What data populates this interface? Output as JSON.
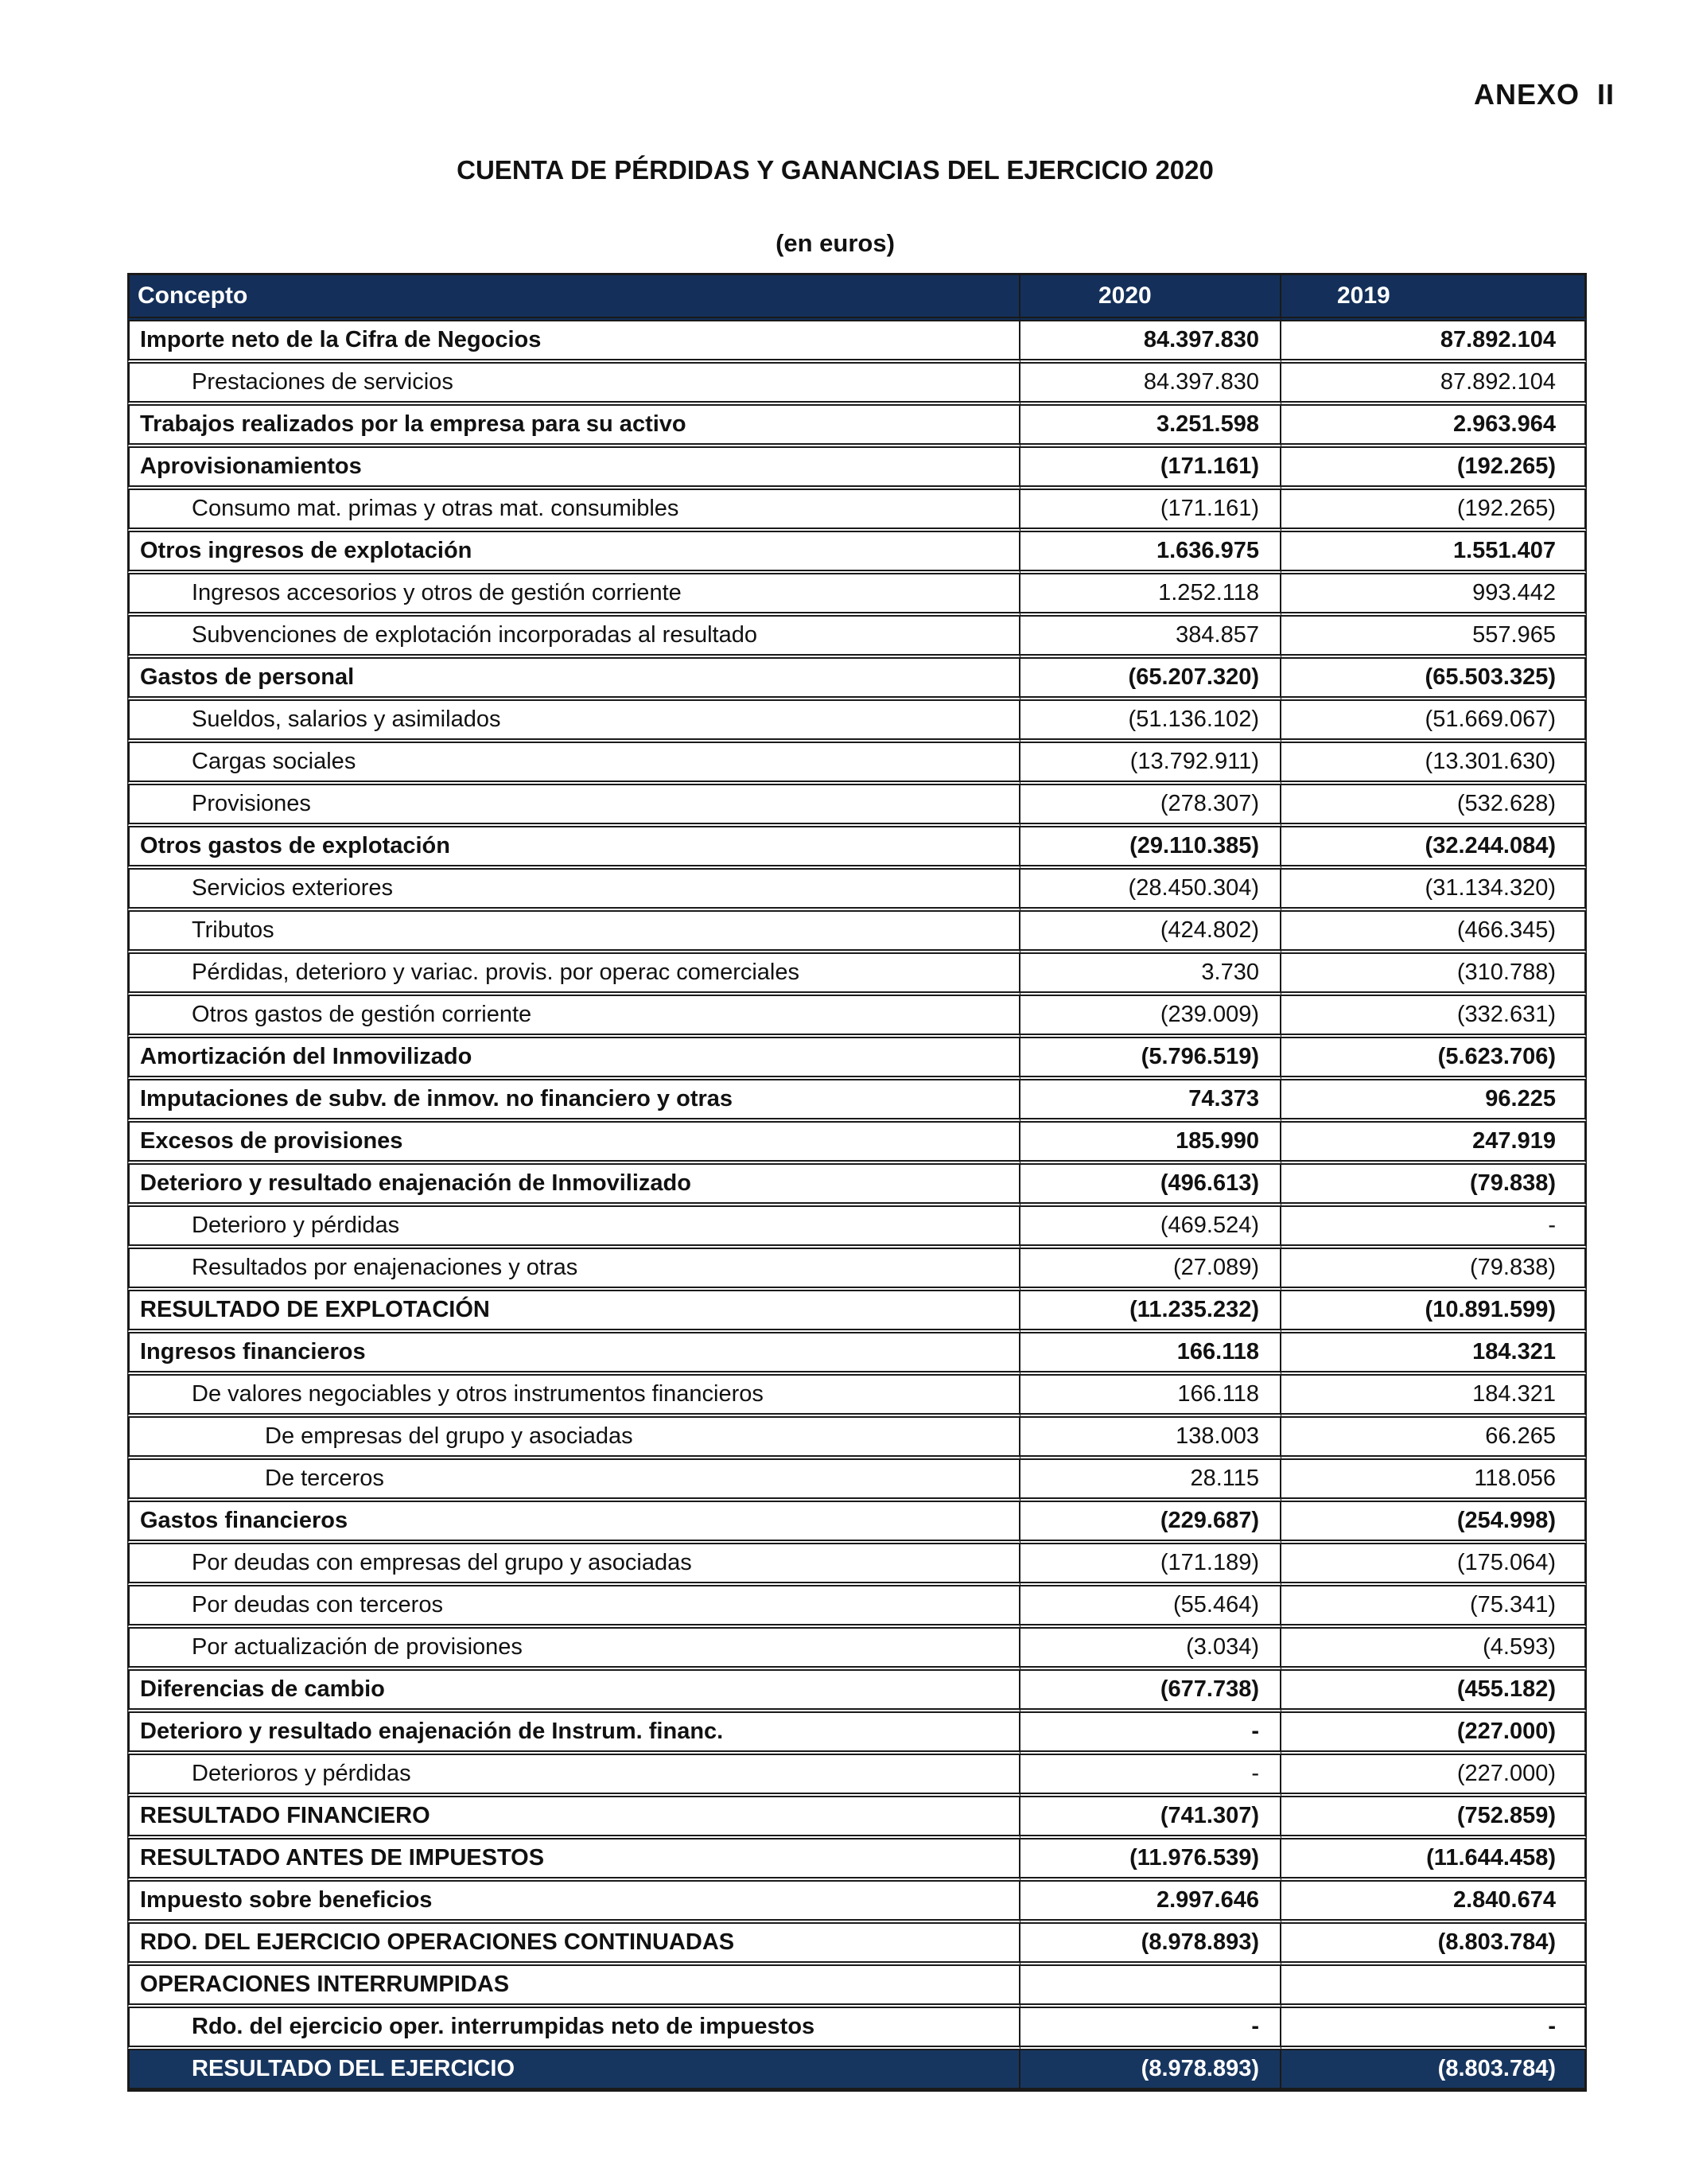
{
  "page": {
    "annex": "ANEXO  II",
    "title": "CUENTA DE PÉRDIDAS Y GANANCIAS DEL EJERCICIO 2020",
    "subtitle": "(en euros)"
  },
  "colors": {
    "header_bg": "#14305A",
    "total_row_bg": "#17365F",
    "border": "#1a1a1a"
  },
  "table": {
    "columns": [
      "Concepto",
      "2020",
      "2019"
    ],
    "rows": [
      {
        "label": "Importe neto de la Cifra de Negocios",
        "v2020": "84.397.830",
        "v2019": "87.892.104",
        "bold": true,
        "indent": 0,
        "total": false
      },
      {
        "label": "Prestaciones de servicios",
        "v2020": "84.397.830",
        "v2019": "87.892.104",
        "bold": false,
        "indent": 1,
        "total": false
      },
      {
        "label": "Trabajos realizados por la empresa para su activo",
        "v2020": "3.251.598",
        "v2019": "2.963.964",
        "bold": true,
        "indent": 0,
        "total": false
      },
      {
        "label": "Aprovisionamientos",
        "v2020": "(171.161)",
        "v2019": "(192.265)",
        "bold": true,
        "indent": 0,
        "total": false
      },
      {
        "label": "Consumo mat. primas y otras mat. consumibles",
        "v2020": "(171.161)",
        "v2019": "(192.265)",
        "bold": false,
        "indent": 1,
        "total": false
      },
      {
        "label": "Otros ingresos de explotación",
        "v2020": "1.636.975",
        "v2019": "1.551.407",
        "bold": true,
        "indent": 0,
        "total": false
      },
      {
        "label": "Ingresos accesorios y otros de gestión corriente",
        "v2020": "1.252.118",
        "v2019": "993.442",
        "bold": false,
        "indent": 1,
        "total": false
      },
      {
        "label": "Subvenciones de explotación incorporadas al resultado",
        "v2020": "384.857",
        "v2019": "557.965",
        "bold": false,
        "indent": 1,
        "total": false
      },
      {
        "label": "Gastos de personal",
        "v2020": "(65.207.320)",
        "v2019": "(65.503.325)",
        "bold": true,
        "indent": 0,
        "total": false
      },
      {
        "label": "Sueldos, salarios y asimilados",
        "v2020": "(51.136.102)",
        "v2019": "(51.669.067)",
        "bold": false,
        "indent": 1,
        "total": false
      },
      {
        "label": "Cargas sociales",
        "v2020": "(13.792.911)",
        "v2019": "(13.301.630)",
        "bold": false,
        "indent": 1,
        "total": false
      },
      {
        "label": "Provisiones",
        "v2020": "(278.307)",
        "v2019": "(532.628)",
        "bold": false,
        "indent": 1,
        "total": false
      },
      {
        "label": "Otros gastos de explotación",
        "v2020": "(29.110.385)",
        "v2019": "(32.244.084)",
        "bold": true,
        "indent": 0,
        "total": false
      },
      {
        "label": "Servicios exteriores",
        "v2020": "(28.450.304)",
        "v2019": "(31.134.320)",
        "bold": false,
        "indent": 1,
        "total": false
      },
      {
        "label": "Tributos",
        "v2020": "(424.802)",
        "v2019": "(466.345)",
        "bold": false,
        "indent": 1,
        "total": false
      },
      {
        "label": "Pérdidas, deterioro y variac. provis. por operac comerciales",
        "v2020": "3.730",
        "v2019": "(310.788)",
        "bold": false,
        "indent": 1,
        "total": false
      },
      {
        "label": "Otros gastos de gestión corriente",
        "v2020": "(239.009)",
        "v2019": "(332.631)",
        "bold": false,
        "indent": 1,
        "total": false
      },
      {
        "label": "Amortización del Inmovilizado",
        "v2020": "(5.796.519)",
        "v2019": "(5.623.706)",
        "bold": true,
        "indent": 0,
        "total": false
      },
      {
        "label": "Imputaciones de subv. de inmov. no financiero y otras",
        "v2020": "74.373",
        "v2019": "96.225",
        "bold": true,
        "indent": 0,
        "total": false
      },
      {
        "label": "Excesos de provisiones",
        "v2020": "185.990",
        "v2019": "247.919",
        "bold": true,
        "indent": 0,
        "total": false
      },
      {
        "label": "Deterioro y resultado enajenación de Inmovilizado",
        "v2020": "(496.613)",
        "v2019": "(79.838)",
        "bold": true,
        "indent": 0,
        "total": false
      },
      {
        "label": "Deterioro y pérdidas",
        "v2020": "(469.524)",
        "v2019": "-",
        "bold": false,
        "indent": 1,
        "total": false
      },
      {
        "label": "Resultados por enajenaciones y otras",
        "v2020": "(27.089)",
        "v2019": "(79.838)",
        "bold": false,
        "indent": 1,
        "total": false
      },
      {
        "label": "RESULTADO DE EXPLOTACIÓN",
        "v2020": "(11.235.232)",
        "v2019": "(10.891.599)",
        "bold": true,
        "indent": 0,
        "total": false
      },
      {
        "label": "Ingresos financieros",
        "v2020": "166.118",
        "v2019": "184.321",
        "bold": true,
        "indent": 0,
        "total": false
      },
      {
        "label": "De valores negociables y otros instrumentos financieros",
        "v2020": "166.118",
        "v2019": "184.321",
        "bold": false,
        "indent": 1,
        "total": false
      },
      {
        "label": "De empresas del grupo y asociadas",
        "v2020": "138.003",
        "v2019": "66.265",
        "bold": false,
        "indent": 2,
        "total": false
      },
      {
        "label": "De terceros",
        "v2020": "28.115",
        "v2019": "118.056",
        "bold": false,
        "indent": 2,
        "total": false
      },
      {
        "label": "Gastos financieros",
        "v2020": "(229.687)",
        "v2019": "(254.998)",
        "bold": true,
        "indent": 0,
        "total": false
      },
      {
        "label": "Por deudas con empresas del grupo y asociadas",
        "v2020": "(171.189)",
        "v2019": "(175.064)",
        "bold": false,
        "indent": 1,
        "total": false
      },
      {
        "label": "Por deudas con terceros",
        "v2020": "(55.464)",
        "v2019": "(75.341)",
        "bold": false,
        "indent": 1,
        "total": false
      },
      {
        "label": "Por actualización de provisiones",
        "v2020": "(3.034)",
        "v2019": "(4.593)",
        "bold": false,
        "indent": 1,
        "total": false
      },
      {
        "label": "Diferencias de cambio",
        "v2020": "(677.738)",
        "v2019": "(455.182)",
        "bold": true,
        "indent": 0,
        "total": false
      },
      {
        "label": "Deterioro y resultado enajenación de Instrum. financ.",
        "v2020": "-",
        "v2019": "(227.000)",
        "bold": true,
        "indent": 0,
        "total": false
      },
      {
        "label": "Deterioros y pérdidas",
        "v2020": "-",
        "v2019": "(227.000)",
        "bold": false,
        "indent": 1,
        "total": false
      },
      {
        "label": "RESULTADO FINANCIERO",
        "v2020": "(741.307)",
        "v2019": "(752.859)",
        "bold": true,
        "indent": 0,
        "total": false
      },
      {
        "label": "RESULTADO ANTES DE IMPUESTOS",
        "v2020": "(11.976.539)",
        "v2019": "(11.644.458)",
        "bold": true,
        "indent": 0,
        "total": false
      },
      {
        "label": "Impuesto sobre beneficios",
        "v2020": "2.997.646",
        "v2019": "2.840.674",
        "bold": true,
        "indent": 0,
        "total": false
      },
      {
        "label": "RDO. DEL EJERCICIO OPERACIONES CONTINUADAS",
        "v2020": "(8.978.893)",
        "v2019": "(8.803.784)",
        "bold": true,
        "indent": 0,
        "total": false
      },
      {
        "label": "OPERACIONES INTERRUMPIDAS",
        "v2020": "",
        "v2019": "",
        "bold": true,
        "indent": 0,
        "total": false
      },
      {
        "label": "Rdo. del ejercicio oper. interrumpidas neto de impuestos",
        "v2020": "-",
        "v2019": "-",
        "bold": true,
        "indent": 1,
        "total": false
      },
      {
        "label": "RESULTADO DEL EJERCICIO",
        "v2020": "(8.978.893)",
        "v2019": "(8.803.784)",
        "bold": true,
        "indent": 1,
        "total": true
      }
    ]
  }
}
